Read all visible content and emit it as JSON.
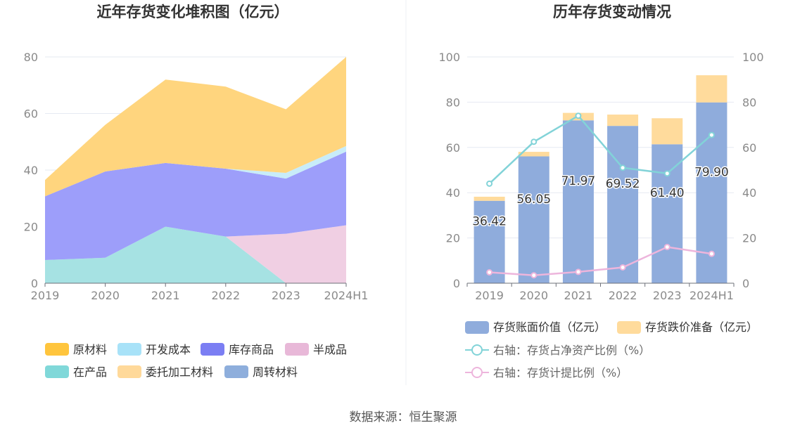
{
  "source_text": "数据来源：恒生聚源",
  "chart_data": [
    {
      "type": "area",
      "stacked": true,
      "title": "近年存货变化堆积图（亿元）",
      "categories": [
        "2019",
        "2020",
        "2021",
        "2022",
        "2023",
        "2024H1"
      ],
      "ylim": [
        0,
        80
      ],
      "yticks": [
        "0",
        "20",
        "40",
        "60",
        "80"
      ],
      "grid": true,
      "legend_position": "bottom",
      "series": [
        {
          "name": "在产品",
          "color": "#A6E2E3",
          "values": [
            8.2,
            9.0,
            20.0,
            16.5,
            0.0,
            0.0
          ]
        },
        {
          "name": "半成品",
          "color": "#F0CFE3",
          "values": [
            0.0,
            0.0,
            0.0,
            0.0,
            17.5,
            20.5
          ]
        },
        {
          "name": "库存商品",
          "color": "#9D9EFA",
          "values": [
            22.5,
            30.5,
            22.5,
            24.0,
            19.5,
            26.0
          ]
        },
        {
          "name": "开发成本",
          "color": "#C8ECF9",
          "values": [
            0.0,
            0.0,
            0.0,
            0.0,
            2.0,
            2.0
          ]
        },
        {
          "name": "原材料",
          "color": "#FFD57E",
          "values": [
            5.8,
            16.5,
            29.5,
            29.0,
            22.5,
            31.5
          ]
        }
      ],
      "legend": [
        {
          "name": "原材料",
          "color": "#FFC53D"
        },
        {
          "name": "开发成本",
          "color": "#A8E2F8"
        },
        {
          "name": "库存商品",
          "color": "#7B7EF3"
        },
        {
          "name": "半成品",
          "color": "#E8B8D8"
        },
        {
          "name": "在产品",
          "color": "#80D8D9"
        },
        {
          "name": "委托加工材料",
          "color": "#FFD99A"
        },
        {
          "name": "周转材料",
          "color": "#8EAEDC"
        }
      ]
    },
    {
      "type": "bar",
      "stacked": true,
      "title": "历年存货变动情况",
      "categories": [
        "2019",
        "2020",
        "2021",
        "2022",
        "2023",
        "2024H1"
      ],
      "ylim": [
        0,
        100
      ],
      "y2lim": [
        0,
        100
      ],
      "yticks": [
        "0",
        "20",
        "40",
        "60",
        "80",
        "100"
      ],
      "y2ticks": [
        "0",
        "20",
        "40",
        "60",
        "80",
        "100"
      ],
      "grid": true,
      "legend_position": "bottom",
      "series": [
        {
          "name": "存货账面价值（亿元）",
          "type": "bar",
          "color": "#8FACDC",
          "values": [
            36.42,
            56.05,
            71.97,
            69.52,
            61.4,
            79.9
          ],
          "labels": [
            "36.42",
            "56.05",
            "71.97",
            "69.52",
            "61.40",
            "79.90"
          ]
        },
        {
          "name": "存货跌价准备（亿元）",
          "type": "bar",
          "color": "#FFDB9C",
          "values": [
            1.8,
            2.0,
            3.3,
            5.0,
            11.5,
            12.0
          ]
        },
        {
          "name": "右轴：存货占净资产比例（%）",
          "type": "line",
          "axis": "right",
          "color": "#82D3D8",
          "values": [
            44.0,
            62.5,
            74.0,
            51.0,
            48.5,
            65.5
          ]
        },
        {
          "name": "右轴：存货计提比例（%）",
          "type": "line",
          "axis": "right",
          "color": "#EDB5DC",
          "values": [
            4.8,
            3.5,
            5.0,
            7.0,
            16.0,
            13.0
          ]
        }
      ]
    }
  ]
}
